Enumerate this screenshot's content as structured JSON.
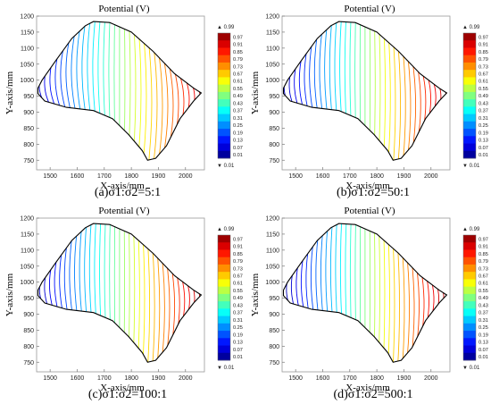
{
  "chart_data": [
    {
      "type": "contour",
      "title": "Potential (V)",
      "xlabel": "X-axis/mm",
      "ylabel": "Y-axis/mm",
      "xlim": [
        1450,
        2070
      ],
      "ylim": [
        720,
        1200
      ],
      "xticks": [
        "1500",
        "1600",
        "1700",
        "1800",
        "1900",
        "2000"
      ],
      "yticks": [
        "750",
        "800",
        "850",
        "900",
        "950",
        "1000",
        "1050",
        "1100",
        "1150",
        "1200"
      ],
      "colorbar": {
        "max_label": "▲ 0.99",
        "min_label": "▼ 0.01",
        "ticks": [
          "0.97",
          "0.91",
          "0.85",
          "0.79",
          "0.73",
          "0.67",
          "0.61",
          "0.55",
          "0.49",
          "0.43",
          "0.37",
          "0.31",
          "0.25",
          "0.19",
          "0.13",
          "0.07",
          "0.01"
        ]
      },
      "caption": "(a)σ1:σ2=5:1",
      "anisotropy": 5
    },
    {
      "type": "contour",
      "title": "Potential (V)",
      "xlabel": "X-axis/mm",
      "ylabel": "Y-axis/mm",
      "xlim": [
        1450,
        2070
      ],
      "ylim": [
        720,
        1200
      ],
      "xticks": [
        "1500",
        "1600",
        "1700",
        "1800",
        "1900",
        "2000"
      ],
      "yticks": [
        "750",
        "800",
        "850",
        "900",
        "950",
        "1000",
        "1050",
        "1100",
        "1150",
        "1200"
      ],
      "colorbar": {
        "max_label": "▲ 0.99",
        "min_label": "▼ 0.01",
        "ticks": [
          "0.97",
          "0.91",
          "0.85",
          "0.79",
          "0.73",
          "0.67",
          "0.61",
          "0.55",
          "0.49",
          "0.43",
          "0.37",
          "0.31",
          "0.25",
          "0.19",
          "0.13",
          "0.07",
          "0.01"
        ]
      },
      "caption": "(b)σ1:σ2=50:1",
      "anisotropy": 50
    },
    {
      "type": "contour",
      "title": "Potential (V)",
      "xlabel": "X-axis/mm",
      "ylabel": "Y-axis/mm",
      "xlim": [
        1450,
        2070
      ],
      "ylim": [
        720,
        1200
      ],
      "xticks": [
        "1500",
        "1600",
        "1700",
        "1800",
        "1900",
        "2000"
      ],
      "yticks": [
        "750",
        "800",
        "850",
        "900",
        "950",
        "1000",
        "1050",
        "1100",
        "1150",
        "1200"
      ],
      "colorbar": {
        "max_label": "▲ 0.99",
        "min_label": "▼ 0.01",
        "ticks": [
          "0.97",
          "0.91",
          "0.85",
          "0.79",
          "0.73",
          "0.67",
          "0.61",
          "0.55",
          "0.49",
          "0.43",
          "0.37",
          "0.31",
          "0.25",
          "0.19",
          "0.13",
          "0.07",
          "0.01"
        ]
      },
      "caption": "(c)σ1:σ2=100:1",
      "anisotropy": 100
    },
    {
      "type": "contour",
      "title": "Potential (V)",
      "xlabel": "X-axis/mm",
      "ylabel": "Y-axis/mm",
      "xlim": [
        1450,
        2070
      ],
      "ylim": [
        720,
        1200
      ],
      "xticks": [
        "1500",
        "1600",
        "1700",
        "1800",
        "1900",
        "2000"
      ],
      "yticks": [
        "750",
        "800",
        "850",
        "900",
        "950",
        "1000",
        "1050",
        "1100",
        "1150",
        "1200"
      ],
      "colorbar": {
        "max_label": "▲ 0.99",
        "min_label": "▼ 0.01",
        "ticks": [
          "0.97",
          "0.91",
          "0.85",
          "0.79",
          "0.73",
          "0.67",
          "0.61",
          "0.55",
          "0.49",
          "0.43",
          "0.37",
          "0.31",
          "0.25",
          "0.19",
          "0.13",
          "0.07",
          "0.01"
        ]
      },
      "caption": "(d)σ1:σ2=500:1",
      "anisotropy": 500
    }
  ]
}
